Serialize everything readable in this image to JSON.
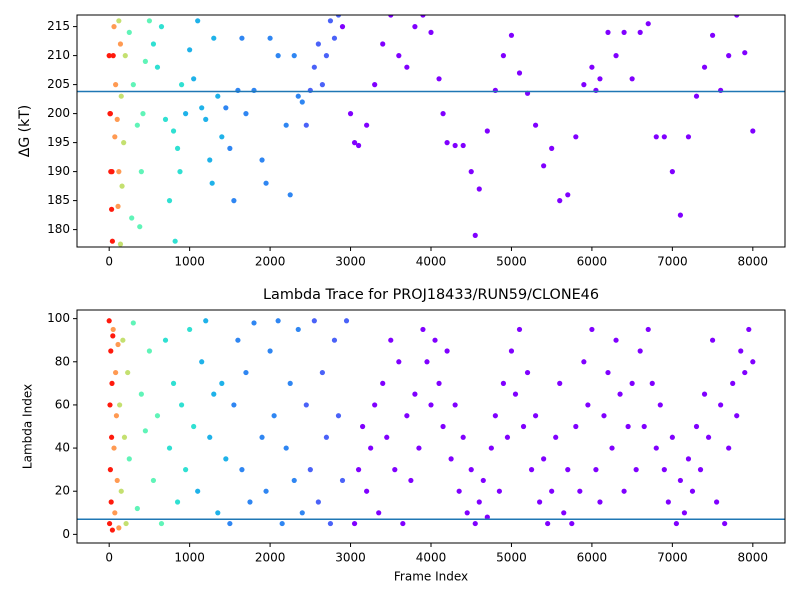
{
  "chart_data": [
    {
      "type": "scatter",
      "ylabel": "ΔG (kT)",
      "xlim": [
        -400,
        8400
      ],
      "ylim": [
        177,
        217
      ],
      "xticks": [
        0,
        1000,
        2000,
        3000,
        4000,
        5000,
        6000,
        7000,
        8000
      ],
      "yticks": [
        180,
        185,
        190,
        195,
        200,
        205,
        210,
        215
      ],
      "hline": 203.8,
      "hline_color": "#1f77b4",
      "series": [
        {
          "color": "#ff1a0d",
          "x": [
            0,
            10,
            20,
            30,
            40,
            50,
            15,
            35
          ],
          "values": [
            210,
            200,
            190,
            183.5,
            178,
            210,
            200,
            190
          ]
        },
        {
          "color": "#ff9a52",
          "x": [
            60,
            80,
            100,
            120,
            140,
            70,
            110
          ],
          "values": [
            215,
            205,
            199,
            190,
            212,
            196,
            184
          ]
        },
        {
          "color": "#c4e070",
          "x": [
            120,
            150,
            180,
            160,
            200,
            140
          ],
          "values": [
            216,
            203,
            195,
            187.5,
            210,
            177.5
          ]
        },
        {
          "color": "#60f4b8",
          "x": [
            250,
            300,
            350,
            400,
            450,
            500,
            280,
            380,
            420
          ],
          "values": [
            214,
            205,
            198,
            190,
            209,
            216,
            182,
            180.5,
            200
          ]
        },
        {
          "color": "#30e0d2",
          "x": [
            550,
            600,
            650,
            700,
            750,
            800,
            850,
            900,
            880,
            820
          ],
          "values": [
            212,
            208,
            215,
            199,
            185,
            197,
            194,
            205,
            190,
            178
          ]
        },
        {
          "color": "#1fb2e9",
          "x": [
            950,
            1000,
            1050,
            1100,
            1150,
            1200,
            1250,
            1300,
            1350,
            1400,
            1280
          ],
          "values": [
            200,
            211,
            206,
            216,
            201,
            199,
            192,
            213,
            203,
            196,
            188
          ]
        },
        {
          "color": "#2f86f2",
          "x": [
            1450,
            1500,
            1550,
            1600,
            1650,
            1700,
            1800,
            1900,
            1950,
            2000,
            2100,
            2200,
            2250,
            2300,
            2350,
            2400
          ],
          "values": [
            201,
            194,
            185,
            204,
            213,
            200,
            204,
            192,
            188,
            213,
            210,
            198,
            186,
            210,
            203,
            202
          ]
        },
        {
          "color": "#4a62f8",
          "x": [
            2450,
            2500,
            2550,
            2600,
            2650,
            2700,
            2750,
            2800,
            2850
          ],
          "values": [
            198,
            204,
            208,
            212,
            205,
            210,
            216,
            213,
            217
          ]
        },
        {
          "color": "#8000ff",
          "x": [
            2900,
            3000,
            3050,
            3100,
            3200,
            3300,
            3400,
            3500,
            3600,
            3700,
            3800,
            3900,
            4000,
            4100,
            4150,
            4200,
            4300,
            4400,
            4500,
            4550,
            4600,
            4700,
            4800,
            4900,
            5000,
            5100,
            5200,
            5300,
            5400,
            5500,
            5600,
            5700,
            5800,
            5900,
            6000,
            6050,
            6100,
            6200,
            6300,
            6400,
            6500,
            6600,
            6700,
            6800,
            6900,
            7000,
            7100,
            7200,
            7300,
            7400,
            7500,
            7600,
            7700,
            7800,
            7900,
            8000
          ],
          "values": [
            215,
            200,
            195,
            194.5,
            198,
            205,
            212,
            217,
            210,
            208,
            215,
            217,
            214,
            206,
            200,
            195,
            194.5,
            194.5,
            190,
            179,
            187,
            197,
            204,
            210,
            213.5,
            207,
            203.5,
            198,
            191,
            194,
            185,
            186,
            196,
            205,
            208,
            204,
            206,
            214,
            210,
            214,
            206,
            214,
            215.5,
            196,
            196,
            190,
            182.5,
            196,
            203,
            208,
            213.5,
            204,
            210,
            217,
            210.5,
            197
          ]
        }
      ]
    },
    {
      "type": "scatter",
      "title": "Lambda Trace for PROJ18433/RUN59/CLONE46",
      "xlabel": "Frame Index",
      "ylabel": "Lambda Index",
      "xlim": [
        -400,
        8400
      ],
      "ylim": [
        -4,
        104
      ],
      "xticks": [
        0,
        1000,
        2000,
        3000,
        4000,
        5000,
        6000,
        7000,
        8000
      ],
      "yticks": [
        0,
        20,
        40,
        60,
        80,
        100
      ],
      "hline": 7,
      "hline_color": "#1f77b4",
      "series": [
        {
          "color": "#ff1a0d",
          "x": [
            0,
            5,
            10,
            15,
            20,
            25,
            30,
            35,
            40,
            45
          ],
          "values": [
            99,
            5,
            60,
            30,
            85,
            15,
            45,
            70,
            2,
            92
          ]
        },
        {
          "color": "#ff9a52",
          "x": [
            50,
            60,
            70,
            80,
            90,
            100,
            110,
            120
          ],
          "values": [
            95,
            40,
            10,
            75,
            55,
            25,
            88,
            3
          ]
        },
        {
          "color": "#c4e070",
          "x": [
            130,
            150,
            170,
            190,
            210,
            230
          ],
          "values": [
            60,
            20,
            90,
            45,
            5,
            75
          ]
        },
        {
          "color": "#60f4b8",
          "x": [
            250,
            300,
            350,
            400,
            450,
            500,
            550,
            600,
            650
          ],
          "values": [
            35,
            98,
            12,
            65,
            48,
            85,
            25,
            55,
            5
          ]
        },
        {
          "color": "#30e0d2",
          "x": [
            700,
            750,
            800,
            850,
            900,
            950,
            1000,
            1050
          ],
          "values": [
            90,
            40,
            70,
            15,
            60,
            30,
            95,
            50
          ]
        },
        {
          "color": "#1fb2e9",
          "x": [
            1100,
            1150,
            1200,
            1250,
            1300,
            1350,
            1400,
            1450
          ],
          "values": [
            20,
            80,
            99,
            45,
            65,
            10,
            70,
            35
          ]
        },
        {
          "color": "#2f86f2",
          "x": [
            1500,
            1550,
            1600,
            1650,
            1700,
            1750,
            1800,
            1900,
            1950,
            2000,
            2050,
            2100,
            2150,
            2200,
            2250,
            2300,
            2350,
            2400
          ],
          "values": [
            5,
            60,
            90,
            30,
            75,
            15,
            98,
            45,
            20,
            85,
            55,
            99,
            5,
            40,
            70,
            25,
            95,
            10
          ]
        },
        {
          "color": "#4a62f8",
          "x": [
            2450,
            2500,
            2550,
            2600,
            2650,
            2700,
            2750,
            2800,
            2850,
            2900,
            2950
          ],
          "values": [
            60,
            30,
            99,
            15,
            75,
            45,
            5,
            90,
            55,
            25,
            99
          ]
        },
        {
          "color": "#8000ff",
          "x": [
            3050,
            3100,
            3150,
            3200,
            3250,
            3300,
            3350,
            3400,
            3450,
            3500,
            3550,
            3600,
            3650,
            3700,
            3750,
            3800,
            3850,
            3900,
            3950,
            4000,
            4050,
            4100,
            4150,
            4200,
            4250,
            4300,
            4350,
            4400,
            4450,
            4500,
            4550,
            4600,
            4650,
            4700,
            4750,
            4800,
            4850,
            4900,
            4950,
            5000,
            5050,
            5100,
            5150,
            5200,
            5250,
            5300,
            5350,
            5400,
            5450,
            5500,
            5550,
            5600,
            5650,
            5700,
            5750,
            5800,
            5850,
            5900,
            5950,
            6000,
            6050,
            6100,
            6150,
            6200,
            6250,
            6300,
            6350,
            6400,
            6450,
            6500,
            6550,
            6600,
            6650,
            6700,
            6750,
            6800,
            6850,
            6900,
            6950,
            7000,
            7050,
            7100,
            7150,
            7200,
            7250,
            7300,
            7350,
            7400,
            7450,
            7500,
            7550,
            7600,
            7650,
            7700,
            7750,
            7800,
            7850,
            7900,
            7950,
            8000
          ],
          "values": [
            5,
            30,
            50,
            20,
            40,
            60,
            10,
            70,
            45,
            90,
            30,
            80,
            5,
            55,
            25,
            65,
            40,
            95,
            80,
            60,
            90,
            70,
            50,
            85,
            35,
            60,
            20,
            45,
            10,
            30,
            5,
            15,
            25,
            8,
            40,
            55,
            20,
            70,
            45,
            85,
            65,
            95,
            50,
            75,
            30,
            55,
            15,
            35,
            5,
            20,
            45,
            70,
            10,
            30,
            5,
            50,
            20,
            80,
            60,
            95,
            30,
            15,
            55,
            75,
            40,
            90,
            65,
            20,
            50,
            70,
            30,
            85,
            50,
            95,
            70,
            40,
            60,
            30,
            15,
            45,
            5,
            25,
            10,
            35,
            20,
            50,
            30,
            65,
            45,
            90,
            15,
            60,
            5,
            40,
            70,
            55,
            85,
            75,
            95,
            80
          ]
        }
      ]
    }
  ]
}
